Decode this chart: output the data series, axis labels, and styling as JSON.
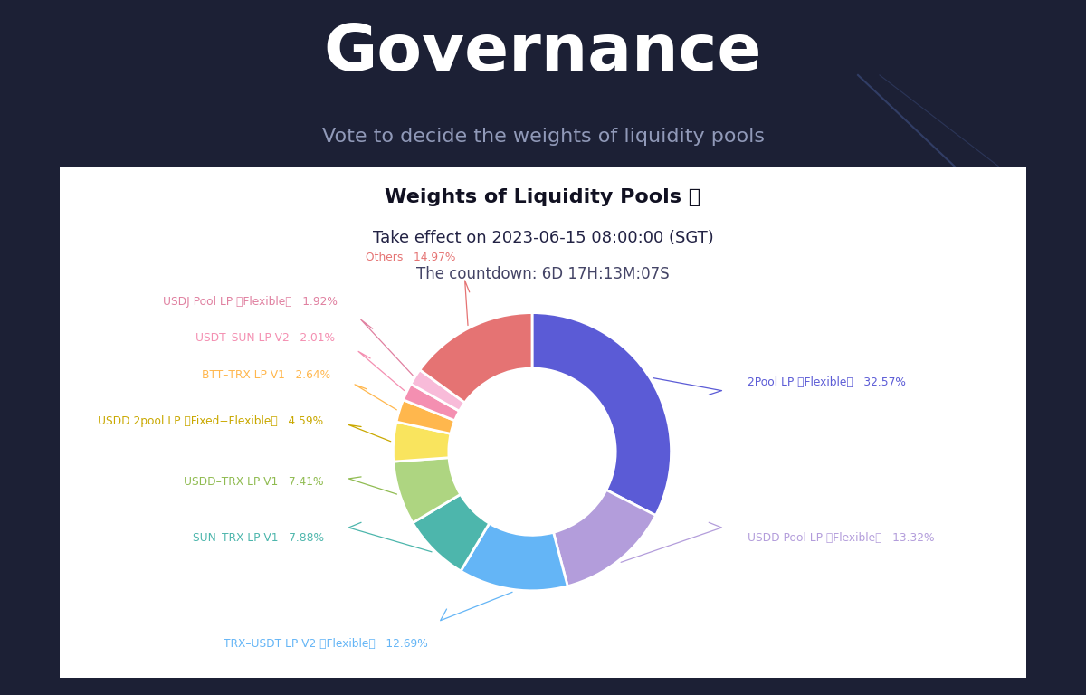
{
  "title": "Governance",
  "subtitle": "Vote to decide the weights of liquidity pools",
  "bg_color": "#1c2035",
  "card_color": "#ffffff",
  "chart_title": "Weights of Liquidity Pools ⓘ",
  "chart_subtitle1": "Take effect on 2023-06-15 08:00:00 (SGT)",
  "chart_subtitle2": "The countdown: 6D 17H:13M:07S",
  "slices": [
    {
      "label": "2Pool LP （Flexible）",
      "value": 32.57,
      "color": "#5b5bd6",
      "pct": "32.57%",
      "text_color": "#5b5bd6"
    },
    {
      "label": "USDD Pool LP （Flexible）",
      "value": 13.32,
      "color": "#b39ddb",
      "pct": "13.32%",
      "text_color": "#b39ddb"
    },
    {
      "label": "TRX–USDT LP V2 （Flexible）",
      "value": 12.69,
      "color": "#64b5f6",
      "pct": "12.69%",
      "text_color": "#64b5f6"
    },
    {
      "label": "SUN–TRX LP V1",
      "value": 7.88,
      "color": "#4db6ac",
      "pct": "7.88%",
      "text_color": "#4db6ac"
    },
    {
      "label": "USDD–TRX LP V1",
      "value": 7.41,
      "color": "#aed581",
      "pct": "7.41%",
      "text_color": "#8fbb50"
    },
    {
      "label": "USDD 2pool LP （Fixed+Flexible）",
      "value": 4.59,
      "color": "#f9e45e",
      "pct": "4.59%",
      "text_color": "#c9a800"
    },
    {
      "label": "BTT–TRX LP V1",
      "value": 2.64,
      "color": "#ffb74d",
      "pct": "2.64%",
      "text_color": "#ffb74d"
    },
    {
      "label": "USDT–SUN LP V2",
      "value": 2.01,
      "color": "#f48fb1",
      "pct": "2.01%",
      "text_color": "#f48fb1"
    },
    {
      "label": "USDJ Pool LP （Flexible）",
      "value": 1.92,
      "color": "#f8bbd9",
      "pct": "1.92%",
      "text_color": "#e080a0"
    },
    {
      "label": "Others",
      "value": 14.97,
      "color": "#e57373",
      "pct": "14.97%",
      "text_color": "#e57373"
    }
  ]
}
